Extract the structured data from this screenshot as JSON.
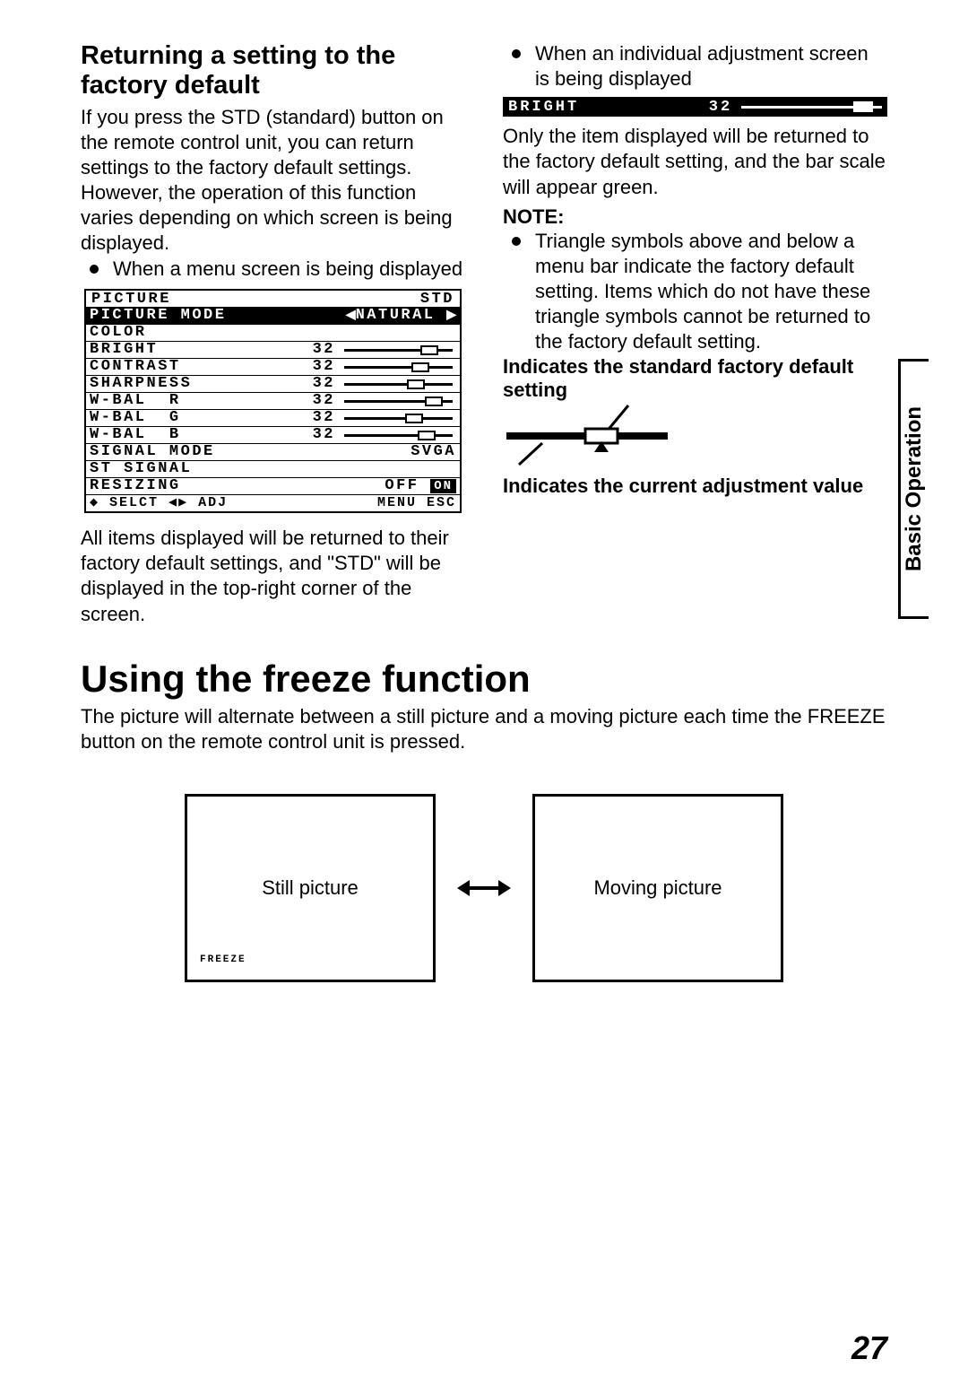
{
  "side_tab": "Basic Operation",
  "page_number": "27",
  "left": {
    "heading": "Returning a setting to the factory default",
    "intro": "If you press the STD (standard) button on the remote control unit, you can return settings to the factory default settings. However, the operation of this function varies depending on which screen is being displayed.",
    "bullet1": "When a menu screen is being displayed",
    "after_menu": "All items displayed will be returned to their factory default settings, and \"STD\" will be displayed in the top-right corner of the screen."
  },
  "menu": {
    "title_left": "PICTURE",
    "title_right": "STD",
    "mode_row_label": "PICTURE MODE",
    "mode_row_value": "NATURAL",
    "rows": [
      {
        "label": "COLOR",
        "value": "",
        "thumb_pct": null
      },
      {
        "label": "BRIGHT",
        "value": "32",
        "thumb_pct": 70
      },
      {
        "label": "CONTRAST",
        "value": "32",
        "thumb_pct": 62
      },
      {
        "label": "SHARPNESS",
        "value": "32",
        "thumb_pct": 58
      },
      {
        "label": "W-BAL  R",
        "value": "32",
        "thumb_pct": 74
      },
      {
        "label": "W-BAL  G",
        "value": "32",
        "thumb_pct": 56
      },
      {
        "label": "W-BAL  B",
        "value": "32",
        "thumb_pct": 68
      }
    ],
    "signal_mode_label": "SIGNAL MODE",
    "signal_mode_value": "SVGA",
    "st_signal": "ST  SIGNAL",
    "resizing_label": "RESIZING",
    "resizing_off": "OFF",
    "resizing_on": "ON",
    "hint_left": "◆ SELCT ◀▶ ADJ",
    "hint_right": "MENU ESC"
  },
  "right": {
    "bullet1": "When an individual adjustment screen is being displayed",
    "bright_label": "BRIGHT",
    "bright_value": "32",
    "para1": "Only the item displayed will be returned to the factory default setting, and the bar scale will appear green.",
    "note_heading": "NOTE:",
    "note_bullet": "Triangle symbols above and below a menu bar indicate the factory default setting. Items which do not have these triangle symbols cannot be returned to the factory default setting.",
    "ind_top": "Indicates the standard factory default setting",
    "ind_bottom": "Indicates the current adjustment value"
  },
  "freeze": {
    "heading": "Using the freeze function",
    "para": "The picture will alternate between a still picture and a moving picture each time the FREEZE button on the remote control unit is pressed.",
    "still": "Still picture",
    "moving": "Moving picture",
    "small": "FREEZE"
  },
  "indicator_svg_colors": {
    "stroke": "#000000"
  }
}
